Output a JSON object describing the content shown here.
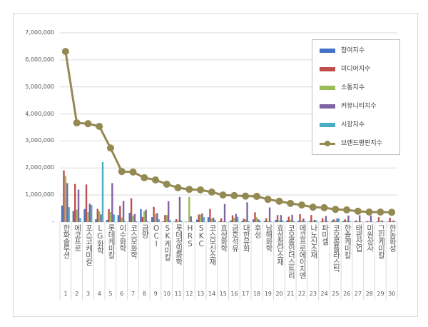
{
  "chart_data": {
    "type": "bar",
    "title": "",
    "xlabel": "",
    "ylabel": "",
    "ylim": [
      0,
      7000000
    ],
    "yticks": [
      "-",
      "1,000,000",
      "2,000,000",
      "3,000,000",
      "4,000,000",
      "5,000,000",
      "6,000,000",
      "7,000,000"
    ],
    "grid": true,
    "legend_position": "top-right",
    "categories": [
      "한화솔루션",
      "에코프로",
      "포스코케미칼",
      "LG화학",
      "롯데케미칼",
      "이수화학",
      "코스모화학",
      "금양",
      "OCI",
      "SK케미칼",
      "롯데정밀화학",
      "HRS",
      "SKC",
      "코스모신소재",
      "효성화학",
      "금호석유",
      "대한유화",
      "후성",
      "남해화학",
      "효성첨단소재",
      "코오롱인더스트리",
      "에코프로에이치엔",
      "나노신소재",
      "파미셀",
      "코오롱플라스틱",
      "한솔케미칼",
      "태광산업",
      "미원상사",
      "그린케미칼",
      "한농화성"
    ],
    "ranks": [
      "1",
      "2",
      "3",
      "4",
      "5",
      "6",
      "7",
      "8",
      "9",
      "10",
      "11",
      "12",
      "13",
      "14",
      "15",
      "16",
      "17",
      "18",
      "19",
      "20",
      "21",
      "22",
      "23",
      "24",
      "25",
      "26",
      "27",
      "28",
      "29",
      "30"
    ],
    "series": [
      {
        "name": "참여지수",
        "type": "bar",
        "color": "#4472c4",
        "values": [
          610000,
          410000,
          480000,
          100000,
          80000,
          260000,
          340000,
          480000,
          180000,
          30000,
          20000,
          10000,
          90000,
          180000,
          30000,
          60000,
          40000,
          100000,
          40000,
          80000,
          60000,
          40000,
          30000,
          20000,
          50000,
          40000,
          20000,
          10000,
          20000,
          20000
        ]
      },
      {
        "name": "미디어지수",
        "type": "bar",
        "color": "#c0504d",
        "values": [
          1910000,
          1410000,
          1390000,
          490000,
          480000,
          600000,
          880000,
          190000,
          560000,
          260000,
          110000,
          10000,
          280000,
          480000,
          140000,
          250000,
          120000,
          360000,
          140000,
          260000,
          200000,
          290000,
          260000,
          140000,
          100000,
          100000,
          60000,
          40000,
          180000,
          160000
        ]
      },
      {
        "name": "소통지수",
        "type": "bar",
        "color": "#9bbb59",
        "values": [
          1710000,
          460000,
          370000,
          400000,
          370000,
          170000,
          240000,
          400000,
          300000,
          260000,
          60000,
          930000,
          280000,
          140000,
          30000,
          150000,
          100000,
          180000,
          40000,
          60000,
          80000,
          60000,
          40000,
          50000,
          60000,
          50000,
          20000,
          20000,
          40000,
          30000
        ]
      },
      {
        "name": "커뮤니티지수",
        "type": "bar",
        "color": "#8064a2",
        "values": [
          1440000,
          1200000,
          680000,
          280000,
          1440000,
          780000,
          300000,
          460000,
          330000,
          770000,
          930000,
          210000,
          320000,
          160000,
          670000,
          300000,
          730000,
          100000,
          540000,
          260000,
          270000,
          130000,
          80000,
          220000,
          130000,
          240000,
          250000,
          240000,
          60000,
          60000
        ]
      },
      {
        "name": "시장지수",
        "type": "bar",
        "color": "#4bacc6",
        "values": [
          550000,
          150000,
          630000,
          2220000,
          280000,
          30000,
          30000,
          30000,
          100000,
          70000,
          60000,
          10000,
          180000,
          70000,
          10000,
          190000,
          30000,
          50000,
          20000,
          60000,
          40000,
          30000,
          60000,
          30000,
          140000,
          30000,
          20000,
          10000,
          20000,
          20000
        ]
      },
      {
        "name": "브랜드평판지수",
        "type": "line",
        "color": "#938953",
        "values": [
          6310000,
          3670000,
          3640000,
          3540000,
          2740000,
          1870000,
          1850000,
          1640000,
          1560000,
          1400000,
          1270000,
          1210000,
          1190000,
          1110000,
          1000000,
          980000,
          960000,
          950000,
          840000,
          770000,
          690000,
          630000,
          550000,
          530000,
          470000,
          450000,
          400000,
          370000,
          370000,
          360000
        ]
      }
    ]
  }
}
